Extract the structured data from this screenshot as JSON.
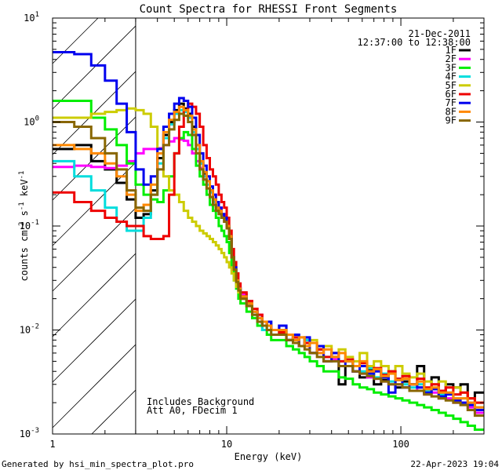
{
  "chart_data": {
    "type": "line",
    "title": "Count Spectra for RHESSI Front Segments",
    "xlabel": "Energy (keV)",
    "ylabel_parts": [
      "counts cm",
      "-2",
      " s",
      "-1",
      " keV",
      "-1"
    ],
    "x_scale": "log",
    "y_scale": "log",
    "xlim": [
      1,
      300
    ],
    "ylim": [
      0.001,
      10
    ],
    "x_ticks": [
      {
        "value": 1,
        "label": "1"
      },
      {
        "value": 10,
        "label": "10"
      },
      {
        "value": 100,
        "label": "100"
      }
    ],
    "y_ticks": [
      {
        "value": 0.001,
        "base": "10",
        "exp": "-3"
      },
      {
        "value": 0.01,
        "base": "10",
        "exp": "-2"
      },
      {
        "value": 0.1,
        "base": "10",
        "exp": "-1"
      },
      {
        "value": 1,
        "base": "10",
        "exp": "0"
      },
      {
        "value": 10,
        "base": "10",
        "exp": "1"
      }
    ],
    "excluded_region": {
      "x_min": 1,
      "x_max": 3,
      "label": "hatched"
    },
    "date": "21-Dec-2011",
    "time_range": "12:37:00 to 12:38:00",
    "annotations": [
      "Includes Background",
      "Att A0, FDecim 1"
    ],
    "footer_left": "Generated by hsi_min_spectra_plot.pro",
    "footer_right": "22-Apr-2023 19:04",
    "energy_bins": [
      1.0,
      1.333,
      1.667,
      2.0,
      2.333,
      2.667,
      3.0,
      3.333,
      3.667,
      4.0,
      4.333,
      4.667,
      5.0,
      5.333,
      5.667,
      6.0,
      6.333,
      6.667,
      7.0,
      7.333,
      7.667,
      8.0,
      8.333,
      8.667,
      9.0,
      9.333,
      9.667,
      10.0,
      10.333,
      10.667,
      11.0,
      11.333,
      11.667,
      12.0,
      13.0,
      14.0,
      15.0,
      16.0,
      17.0,
      18.0,
      20.0,
      22.0,
      24.0,
      26.0,
      28.0,
      30.0,
      33.0,
      36.0,
      40.0,
      44.0,
      48.0,
      53.0,
      58.0,
      64.0,
      70.0,
      77.0,
      85.0,
      93.0,
      102.0,
      112.0,
      124.0,
      136.0,
      150.0,
      165.0,
      181.0,
      200.0,
      220.0,
      242.0,
      266.0,
      300.0
    ],
    "series": [
      {
        "name": "1F",
        "color": "#000000",
        "values": [
          0.55,
          0.6,
          0.42,
          0.35,
          0.26,
          0.18,
          0.12,
          0.13,
          0.22,
          0.45,
          0.75,
          1.0,
          1.3,
          1.5,
          1.35,
          1.2,
          0.9,
          0.6,
          0.4,
          0.32,
          0.27,
          0.22,
          0.18,
          0.15,
          0.14,
          0.13,
          0.12,
          0.1,
          0.08,
          0.05,
          0.038,
          0.028,
          0.025,
          0.022,
          0.018,
          0.015,
          0.013,
          0.011,
          0.012,
          0.01,
          0.011,
          0.008,
          0.009,
          0.007,
          0.008,
          0.006,
          0.0065,
          0.005,
          0.0055,
          0.003,
          0.0045,
          0.004,
          0.0035,
          0.0042,
          0.003,
          0.0033,
          0.004,
          0.0028,
          0.0032,
          0.003,
          0.0045,
          0.0025,
          0.0035,
          0.0022,
          0.003,
          0.0028,
          0.003,
          0.0022,
          0.0025,
          0.0016
        ]
      },
      {
        "name": "2F",
        "color": "#ff00ff",
        "values": [
          0.37,
          0.38,
          0.37,
          0.36,
          0.38,
          0.42,
          0.5,
          0.55,
          0.55,
          0.56,
          0.6,
          0.65,
          0.7,
          0.68,
          0.66,
          0.6,
          0.5,
          0.42,
          0.36,
          0.3,
          0.27,
          0.22,
          0.2,
          0.17,
          0.15,
          0.13,
          0.12,
          0.1,
          0.08,
          0.05,
          0.038,
          0.03,
          0.026,
          0.022,
          0.019,
          0.016,
          0.014,
          0.012,
          0.011,
          0.01,
          0.009,
          0.008,
          0.0085,
          0.007,
          0.0075,
          0.006,
          0.006,
          0.005,
          0.0052,
          0.0045,
          0.0045,
          0.004,
          0.0038,
          0.0035,
          0.0034,
          0.0032,
          0.003,
          0.003,
          0.0028,
          0.0026,
          0.0028,
          0.0024,
          0.0025,
          0.0022,
          0.0022,
          0.002,
          0.002,
          0.0018,
          0.0016,
          0.0014
        ]
      },
      {
        "name": "3F",
        "color": "#00ee00",
        "values": [
          1.6,
          1.6,
          1.1,
          0.85,
          0.6,
          0.4,
          0.25,
          0.2,
          0.18,
          0.17,
          0.22,
          0.3,
          0.5,
          0.7,
          0.8,
          0.75,
          0.55,
          0.38,
          0.3,
          0.25,
          0.2,
          0.16,
          0.14,
          0.12,
          0.1,
          0.09,
          0.08,
          0.07,
          0.055,
          0.04,
          0.03,
          0.025,
          0.02,
          0.018,
          0.015,
          0.013,
          0.011,
          0.01,
          0.009,
          0.008,
          0.008,
          0.007,
          0.0065,
          0.006,
          0.0055,
          0.005,
          0.0045,
          0.004,
          0.004,
          0.0035,
          0.0034,
          0.003,
          0.0028,
          0.0027,
          0.0025,
          0.0024,
          0.0023,
          0.0022,
          0.0021,
          0.002,
          0.0019,
          0.0018,
          0.0017,
          0.0016,
          0.0015,
          0.0014,
          0.0013,
          0.0012,
          0.0011,
          0.001
        ]
      },
      {
        "name": "4F",
        "color": "#00dddd",
        "values": [
          0.42,
          0.3,
          0.22,
          0.15,
          0.11,
          0.09,
          0.09,
          0.12,
          0.2,
          0.4,
          0.7,
          0.95,
          1.2,
          1.3,
          1.25,
          1.1,
          0.8,
          0.55,
          0.4,
          0.3,
          0.25,
          0.21,
          0.17,
          0.14,
          0.13,
          0.12,
          0.11,
          0.1,
          0.08,
          0.05,
          0.04,
          0.03,
          0.025,
          0.02,
          0.017,
          0.014,
          0.012,
          0.01,
          0.012,
          0.009,
          0.01,
          0.008,
          0.0085,
          0.007,
          0.008,
          0.006,
          0.007,
          0.0055,
          0.006,
          0.005,
          0.005,
          0.0045,
          0.004,
          0.0043,
          0.0035,
          0.0038,
          0.0032,
          0.0034,
          0.003,
          0.0028,
          0.003,
          0.0026,
          0.0027,
          0.0024,
          0.0025,
          0.0022,
          0.0022,
          0.002,
          0.0018,
          0.0015
        ]
      },
      {
        "name": "5F",
        "color": "#cccc00",
        "values": [
          1.1,
          1.1,
          1.2,
          1.25,
          1.3,
          1.35,
          1.3,
          1.2,
          0.9,
          0.55,
          0.3,
          0.22,
          0.2,
          0.17,
          0.14,
          0.12,
          0.11,
          0.1,
          0.09,
          0.085,
          0.08,
          0.075,
          0.07,
          0.065,
          0.06,
          0.055,
          0.05,
          0.045,
          0.04,
          0.035,
          0.03,
          0.026,
          0.023,
          0.02,
          0.017,
          0.015,
          0.013,
          0.012,
          0.011,
          0.01,
          0.009,
          0.009,
          0.008,
          0.0085,
          0.007,
          0.008,
          0.0065,
          0.007,
          0.006,
          0.0065,
          0.0055,
          0.005,
          0.006,
          0.0045,
          0.005,
          0.0045,
          0.004,
          0.0045,
          0.0038,
          0.0035,
          0.0038,
          0.0032,
          0.003,
          0.0032,
          0.0028,
          0.0028,
          0.0025,
          0.0022,
          0.002,
          0.0018
        ]
      },
      {
        "name": "6F",
        "color": "#ee0000",
        "values": [
          0.21,
          0.17,
          0.14,
          0.12,
          0.11,
          0.1,
          0.1,
          0.08,
          0.075,
          0.075,
          0.08,
          0.2,
          0.5,
          0.9,
          1.3,
          1.5,
          1.4,
          1.2,
          0.9,
          0.6,
          0.45,
          0.35,
          0.3,
          0.25,
          0.2,
          0.17,
          0.15,
          0.12,
          0.09,
          0.06,
          0.045,
          0.035,
          0.028,
          0.023,
          0.019,
          0.016,
          0.014,
          0.012,
          0.011,
          0.01,
          0.0095,
          0.008,
          0.0085,
          0.007,
          0.0075,
          0.006,
          0.0065,
          0.0055,
          0.006,
          0.005,
          0.0052,
          0.0045,
          0.0048,
          0.004,
          0.0043,
          0.0037,
          0.004,
          0.0034,
          0.0036,
          0.003,
          0.0034,
          0.0028,
          0.003,
          0.0026,
          0.0028,
          0.0024,
          0.0025,
          0.0022,
          0.002,
          0.0017
        ]
      },
      {
        "name": "7F",
        "color": "#0000ee",
        "values": [
          4.7,
          4.5,
          3.5,
          2.5,
          1.5,
          0.8,
          0.35,
          0.25,
          0.3,
          0.55,
          0.9,
          1.2,
          1.5,
          1.7,
          1.6,
          1.4,
          1.1,
          0.75,
          0.5,
          0.38,
          0.3,
          0.24,
          0.2,
          0.17,
          0.15,
          0.13,
          0.12,
          0.1,
          0.08,
          0.05,
          0.04,
          0.03,
          0.025,
          0.021,
          0.018,
          0.015,
          0.013,
          0.011,
          0.012,
          0.01,
          0.011,
          0.008,
          0.009,
          0.007,
          0.0085,
          0.006,
          0.007,
          0.005,
          0.006,
          0.0045,
          0.005,
          0.004,
          0.0045,
          0.0038,
          0.004,
          0.0035,
          0.0025,
          0.0033,
          0.0028,
          0.003,
          0.0028,
          0.0025,
          0.0027,
          0.0023,
          0.0024,
          0.0021,
          0.002,
          0.0019,
          0.0017,
          0.0015
        ]
      },
      {
        "name": "8F",
        "color": "#ff8800",
        "values": [
          0.6,
          0.55,
          0.5,
          0.4,
          0.3,
          0.2,
          0.14,
          0.16,
          0.25,
          0.5,
          0.8,
          1.05,
          1.25,
          1.4,
          1.3,
          1.15,
          0.85,
          0.6,
          0.42,
          0.33,
          0.27,
          0.22,
          0.18,
          0.15,
          0.14,
          0.12,
          0.11,
          0.1,
          0.08,
          0.05,
          0.038,
          0.03,
          0.025,
          0.021,
          0.018,
          0.015,
          0.013,
          0.012,
          0.011,
          0.01,
          0.01,
          0.009,
          0.008,
          0.0085,
          0.007,
          0.0075,
          0.006,
          0.0065,
          0.0055,
          0.006,
          0.005,
          0.0045,
          0.005,
          0.004,
          0.0042,
          0.0036,
          0.0038,
          0.0033,
          0.0034,
          0.003,
          0.0032,
          0.0027,
          0.0028,
          0.0025,
          0.0025,
          0.0022,
          0.0022,
          0.002,
          0.0018,
          0.0016
        ]
      },
      {
        "name": "9F",
        "color": "#886600",
        "values": [
          1.0,
          0.9,
          0.7,
          0.5,
          0.35,
          0.22,
          0.15,
          0.14,
          0.2,
          0.35,
          0.6,
          0.85,
          1.05,
          1.2,
          1.15,
          1.0,
          0.75,
          0.5,
          0.35,
          0.28,
          0.23,
          0.19,
          0.16,
          0.14,
          0.13,
          0.12,
          0.11,
          0.095,
          0.075,
          0.05,
          0.038,
          0.029,
          0.024,
          0.02,
          0.017,
          0.014,
          0.012,
          0.011,
          0.01,
          0.009,
          0.009,
          0.008,
          0.0075,
          0.007,
          0.0065,
          0.006,
          0.0055,
          0.005,
          0.005,
          0.0045,
          0.0045,
          0.004,
          0.0038,
          0.0036,
          0.0034,
          0.0032,
          0.003,
          0.003,
          0.0028,
          0.0026,
          0.0026,
          0.0024,
          0.0023,
          0.0022,
          0.0021,
          0.002,
          0.0019,
          0.0017,
          0.0015,
          0.0013
        ]
      }
    ]
  }
}
